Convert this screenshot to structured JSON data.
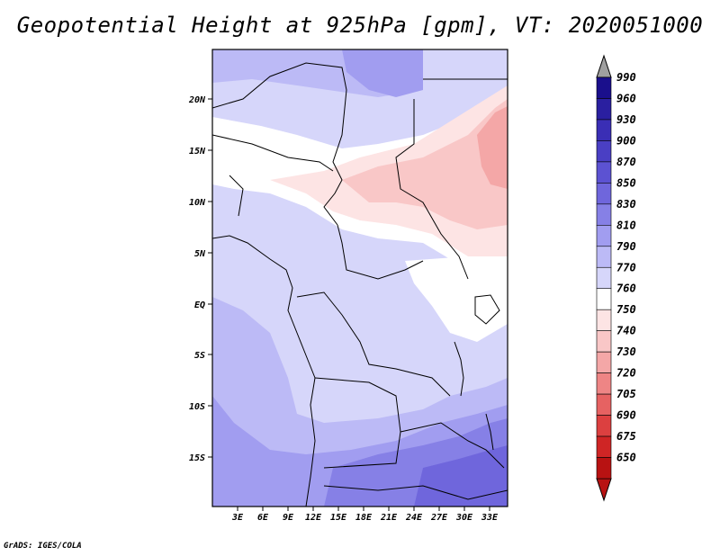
{
  "title": "Geopotential Height at 925hPa [gpm], VT: 2020051000",
  "credit": "GrADS: IGES/COLA",
  "map": {
    "variable": "Geopotential Height",
    "level": "925hPa",
    "units": "gpm",
    "valid_time": "2020051000",
    "lon_ticks": [
      "3E",
      "6E",
      "9E",
      "12E",
      "15E",
      "18E",
      "21E",
      "24E",
      "27E",
      "30E",
      "33E"
    ],
    "lat_ticks": [
      "20N",
      "15N",
      "10N",
      "5N",
      "EQ",
      "5S",
      "10S",
      "15S"
    ]
  },
  "colorbar": {
    "levels": [
      "990",
      "960",
      "930",
      "900",
      "870",
      "850",
      "830",
      "810",
      "790",
      "770",
      "760",
      "750",
      "740",
      "730",
      "720",
      "705",
      "690",
      "675",
      "650"
    ],
    "colors": [
      "#1a0f8c",
      "#2a1fa0",
      "#3a2eb5",
      "#4a3fc4",
      "#5c52d2",
      "#6f66dc",
      "#8680e6",
      "#a19df0",
      "#bcbaf6",
      "#d6d6fa",
      "#ffffff",
      "#fde4e4",
      "#f9c7c7",
      "#f4a7a7",
      "#ee8585",
      "#e66262",
      "#dc4040",
      "#cf2525",
      "#b81212"
    ]
  }
}
